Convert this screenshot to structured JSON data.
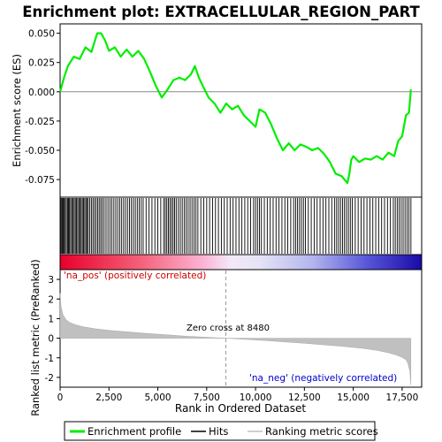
{
  "chart_data": {
    "type": "line",
    "title": "Enrichment plot: EXTRACELLULAR_REGION_PART",
    "top_panel": {
      "ylabel": "Enrichment score (ES)",
      "ylim": [
        -0.09,
        0.058
      ],
      "yticks": [
        0.05,
        0.025,
        0.0,
        -0.025,
        -0.05,
        -0.075
      ],
      "ytick_labels": [
        "0.050",
        "0.025",
        "0.000",
        "-0.025",
        "-0.050",
        "-0.075"
      ],
      "series": [
        {
          "name": "Enrichment profile",
          "color": "#00ee00",
          "x": [
            0,
            200,
            400,
            700,
            1000,
            1300,
            1600,
            1900,
            2100,
            2300,
            2500,
            2800,
            3100,
            3400,
            3700,
            4000,
            4300,
            4600,
            4900,
            5200,
            5500,
            5800,
            6100,
            6400,
            6700,
            6900,
            7100,
            7300,
            7600,
            7900,
            8200,
            8500,
            8800,
            9100,
            9400,
            9700,
            10000,
            10200,
            10500,
            10800,
            11100,
            11400,
            11700,
            12000,
            12300,
            12600,
            12900,
            13200,
            13500,
            13800,
            14100,
            14400,
            14700,
            14800,
            14900,
            15000,
            15300,
            15600,
            15900,
            16200,
            16500,
            16800,
            17100,
            17300,
            17500,
            17700,
            17850,
            17950
          ],
          "y": [
            0.0,
            0.012,
            0.022,
            0.03,
            0.028,
            0.038,
            0.034,
            0.05,
            0.05,
            0.044,
            0.035,
            0.038,
            0.03,
            0.036,
            0.03,
            0.035,
            0.028,
            0.017,
            0.005,
            -0.005,
            0.002,
            0.01,
            0.012,
            0.01,
            0.015,
            0.022,
            0.012,
            0.005,
            -0.005,
            -0.01,
            -0.018,
            -0.01,
            -0.015,
            -0.012,
            -0.02,
            -0.025,
            -0.03,
            -0.015,
            -0.018,
            -0.028,
            -0.04,
            -0.05,
            -0.044,
            -0.05,
            -0.045,
            -0.047,
            -0.05,
            -0.048,
            -0.053,
            -0.06,
            -0.07,
            -0.072,
            -0.078,
            -0.07,
            -0.058,
            -0.055,
            -0.06,
            -0.057,
            -0.058,
            -0.055,
            -0.058,
            -0.052,
            -0.055,
            -0.042,
            -0.038,
            -0.02,
            -0.018,
            0.002
          ]
        }
      ]
    },
    "hits_panel": {
      "legend_label": "Hits",
      "hit_ranks": [
        20,
        60,
        110,
        160,
        210,
        260,
        320,
        380,
        430,
        480,
        540,
        600,
        660,
        720,
        780,
        840,
        900,
        960,
        1020,
        1080,
        1140,
        1200,
        1260,
        1320,
        1380,
        1440,
        1520,
        1600,
        1680,
        1760,
        1840,
        1920,
        2000,
        2080,
        2160,
        2250,
        2350,
        2450,
        2550,
        2650,
        2750,
        2850,
        2950,
        3050,
        3150,
        3250,
        3350,
        3450,
        3550,
        3650,
        3750,
        3850,
        3950,
        4050,
        4150,
        4250,
        4400,
        4550,
        4700,
        4850,
        5000,
        5150,
        5300,
        5380,
        5460,
        5540,
        5620,
        5700,
        5780,
        5860,
        5940,
        6050,
        6150,
        6250,
        6350,
        6450,
        6550,
        6650,
        6750,
        6850,
        6950,
        7050,
        7200,
        7350,
        7500,
        7650,
        7800,
        7950,
        8100,
        8250,
        8400,
        8550,
        8700,
        8850,
        9000,
        9150,
        9300,
        9450,
        9600,
        9750,
        9900,
        10000,
        10100,
        10200,
        10300,
        10450,
        10600,
        10750,
        10900,
        11050,
        11200,
        11350,
        11500,
        11650,
        11800,
        11950,
        12050,
        12150,
        12250,
        12350,
        12450,
        12550,
        12700,
        12850,
        13000,
        13150,
        13300,
        13450,
        13600,
        13750,
        13900,
        14050,
        14150,
        14250,
        14350,
        14450,
        14550,
        14650,
        14750,
        14850,
        14950,
        15100,
        15250,
        15400,
        15550,
        15700,
        15850,
        16000,
        16150,
        16300,
        16450,
        16600,
        16750,
        16900,
        17050,
        17150,
        17250,
        17350,
        17450,
        17550,
        17650,
        17750,
        17850,
        17950
      ]
    },
    "ranking_panel": {
      "ylabel": "Ranked list metric (PreRanked)",
      "xlabel": "Rank in Ordered Dataset",
      "ylim": [
        -2.5,
        3.5
      ],
      "yticks": [
        3,
        2,
        1,
        0,
        -1,
        -2
      ],
      "xlim": [
        0,
        18500
      ],
      "xticks": [
        0,
        2500,
        5000,
        7500,
        10000,
        12500,
        15000,
        17500
      ],
      "xtick_labels": [
        "0",
        "2,500",
        "5,000",
        "7,500",
        "10,000",
        "12,500",
        "15,000",
        "17,500"
      ],
      "zero_cross_label": "Zero cross at 8480",
      "zero_cross_x": 8480,
      "pos_label": "'na_pos' (positively correlated)",
      "neg_label": "'na_neg' (negatively correlated)",
      "metric_x": [
        0,
        50,
        150,
        300,
        500,
        800,
        1200,
        1800,
        2500,
        3500,
        4500,
        5500,
        6500,
        7500,
        8480,
        9500,
        10500,
        11500,
        12500,
        13500,
        14500,
        15500,
        16200,
        16800,
        17200,
        17500,
        17700,
        17800,
        17900,
        17950
      ],
      "metric_y": [
        2.3,
        1.6,
        1.2,
        0.95,
        0.8,
        0.68,
        0.58,
        0.48,
        0.4,
        0.32,
        0.24,
        0.17,
        0.1,
        0.05,
        0.0,
        -0.06,
        -0.12,
        -0.19,
        -0.26,
        -0.34,
        -0.42,
        -0.52,
        -0.62,
        -0.74,
        -0.86,
        -0.98,
        -1.1,
        -1.3,
        -1.7,
        -2.4
      ]
    },
    "legend": {
      "entries": [
        {
          "label": "Enrichment profile",
          "color": "#00ee00"
        },
        {
          "label": "Hits",
          "color": "#000000"
        },
        {
          "label": "Ranking metric scores",
          "color": "#c0c0c0"
        }
      ]
    }
  }
}
